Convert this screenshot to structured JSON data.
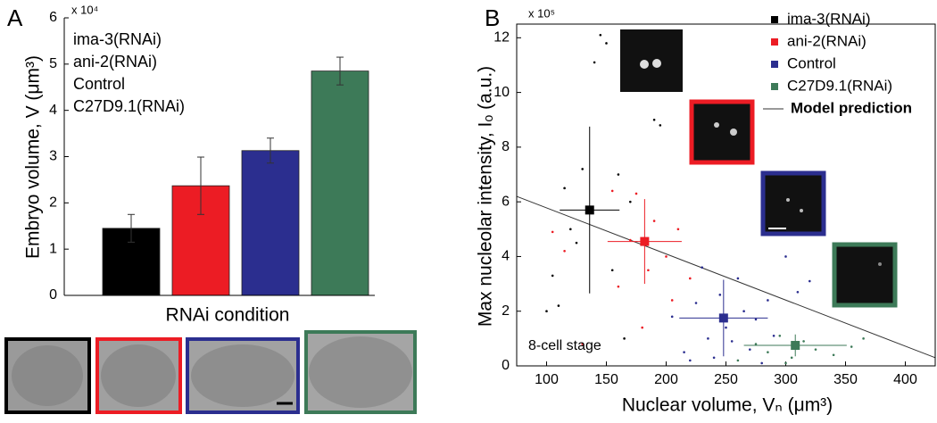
{
  "chart_data": [
    {
      "type": "bar",
      "panel": "A",
      "multiplier": "x 10⁴",
      "ylabel": "Embryo volume, V (μm³)",
      "xlabel": "RNAi condition",
      "categories": [
        "ima-3(RNAi)",
        "ani-2(RNAi)",
        "Control",
        "C27D9.1(RNAi)"
      ],
      "values": [
        1.45,
        2.37,
        3.13,
        4.85
      ],
      "errors": [
        0.3,
        0.62,
        0.27,
        0.3
      ],
      "colors": [
        "#000000",
        "#ec1c24",
        "#2b2e8f",
        "#3d7a58"
      ],
      "ylim": [
        0,
        6
      ],
      "yticks": [
        0,
        1,
        2,
        3,
        4,
        5,
        6
      ]
    },
    {
      "type": "scatter",
      "panel": "B",
      "multiplier": "x 10⁵",
      "ylabel": "Max nucleolar intensity, Iₒ (a.u.)",
      "xlabel": "Nuclear volume, Vₙ (μm³)",
      "annotation": "8-cell stage",
      "xlim": [
        75,
        425
      ],
      "xticks": [
        100,
        150,
        200,
        250,
        300,
        350,
        400
      ],
      "ylim": [
        0,
        12.5
      ],
      "yticks": [
        0,
        2,
        4,
        6,
        8,
        10,
        12
      ],
      "series": [
        {
          "name": "ima-3(RNAi)",
          "color": "#000000",
          "x": [
            105,
            110,
            115,
            120,
            130,
            140,
            145,
            150,
            160,
            170,
            190,
            195,
            100,
            125,
            155,
            165
          ],
          "values": [
            3.3,
            2.2,
            6.5,
            5.0,
            7.2,
            11.1,
            12.1,
            11.8,
            7.0,
            6.0,
            9.0,
            8.8,
            2.0,
            4.5,
            3.5,
            1.0
          ],
          "mean_x": 136,
          "mean_y": 5.7,
          "x_err": 25,
          "y_err": 3.05
        },
        {
          "name": "ani-2(RNAi)",
          "color": "#ec1c24",
          "x": [
            105,
            115,
            130,
            155,
            170,
            175,
            180,
            185,
            190,
            200,
            205,
            210,
            220,
            160
          ],
          "values": [
            4.9,
            4.2,
            0.8,
            6.4,
            4.6,
            6.3,
            1.4,
            3.5,
            5.3,
            4.0,
            2.4,
            5.0,
            3.2,
            2.9
          ],
          "mean_x": 182,
          "mean_y": 4.55,
          "x_err": 31,
          "y_err": 1.55
        },
        {
          "name": "Control",
          "color": "#2b2e8f",
          "x": [
            205,
            215,
            225,
            230,
            235,
            240,
            245,
            250,
            255,
            260,
            265,
            270,
            275,
            285,
            290,
            300,
            310,
            220,
            280,
            320
          ],
          "values": [
            1.8,
            0.5,
            2.3,
            3.6,
            1.0,
            0.3,
            2.6,
            1.4,
            0.9,
            3.2,
            2.0,
            0.6,
            1.7,
            2.4,
            1.1,
            4.0,
            2.7,
            0.2,
            0.1,
            3.1
          ],
          "mean_x": 248,
          "mean_y": 1.75,
          "x_err": 37,
          "y_err": 1.4
        },
        {
          "name": "C27D9.1(RNAi)",
          "color": "#3d7a58",
          "x": [
            260,
            275,
            285,
            295,
            305,
            315,
            325,
            340,
            355,
            365,
            300
          ],
          "values": [
            0.2,
            0.8,
            0.5,
            1.1,
            0.3,
            0.9,
            0.6,
            0.4,
            0.7,
            1.0,
            0.1
          ],
          "mean_x": 308,
          "mean_y": 0.75,
          "x_err": 43,
          "y_err": 0.4
        }
      ],
      "model": {
        "name": "Model prediction",
        "color": "#333333",
        "x": [
          75,
          425
        ],
        "values": [
          6.2,
          0.3
        ]
      }
    }
  ]
}
